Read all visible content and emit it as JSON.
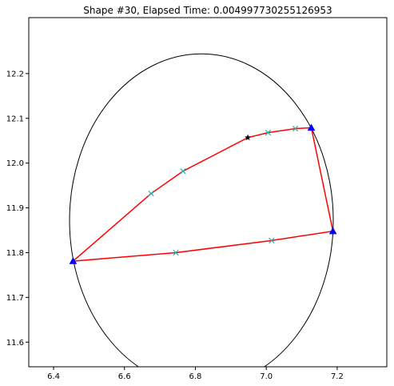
{
  "chart_data": {
    "type": "scatter",
    "title": "Shape #30, Elapsed Time: 0.004997730255126953",
    "xlabel": "",
    "ylabel": "",
    "xlim": [
      6.33,
      7.34
    ],
    "ylim": [
      11.545,
      12.325
    ],
    "x_ticks": [
      "6.4",
      "6.6",
      "6.8",
      "7.0",
      "7.2"
    ],
    "y_ticks": [
      "11.6",
      "11.7",
      "11.8",
      "11.9",
      "12.0",
      "12.1",
      "12.2"
    ],
    "grid": false,
    "legend": "none",
    "ellipse": {
      "center": [
        6.817,
        11.872
      ],
      "semi_axis_x": 0.372,
      "semi_axis_y": 0.372,
      "color": "#000000"
    },
    "polygon": {
      "color": "#ff0000",
      "points": [
        [
          6.455,
          11.781
        ],
        [
          6.745,
          11.8
        ],
        [
          7.015,
          11.827
        ],
        [
          7.188,
          11.848
        ],
        [
          7.127,
          12.079
        ],
        [
          7.082,
          12.077
        ],
        [
          7.005,
          12.068
        ],
        [
          6.948,
          12.057
        ],
        [
          6.765,
          11.982
        ],
        [
          6.675,
          11.932
        ],
        [
          6.455,
          11.781
        ]
      ]
    },
    "vertices": {
      "marker": "triangle",
      "color": "#0000ff",
      "points": [
        [
          6.455,
          11.781
        ],
        [
          7.188,
          11.848
        ],
        [
          7.127,
          12.079
        ]
      ]
    },
    "edge_points": {
      "marker": "x",
      "color": "#20b2aa",
      "points": [
        [
          6.745,
          11.8
        ],
        [
          7.015,
          11.827
        ],
        [
          7.082,
          12.077
        ],
        [
          7.005,
          12.068
        ],
        [
          6.765,
          11.982
        ],
        [
          6.675,
          11.932
        ]
      ]
    },
    "special_point": {
      "marker": "star",
      "color": "#000000",
      "point": [
        6.948,
        12.057
      ]
    }
  }
}
